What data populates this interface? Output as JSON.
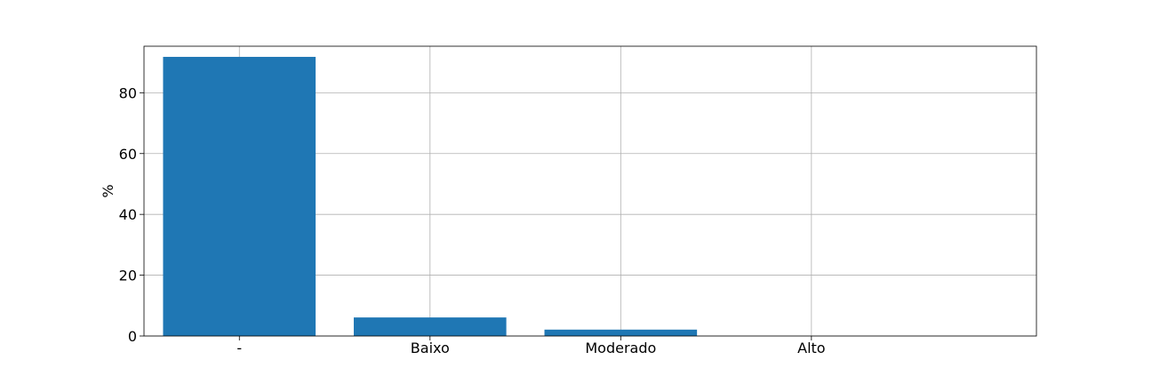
{
  "chart_data": {
    "type": "bar",
    "categories": [
      "-",
      "Baixo",
      "Moderado",
      "Alto"
    ],
    "values": [
      91.8,
      6.1,
      2.1,
      0.0
    ],
    "title": "",
    "xlabel": "",
    "ylabel": "%",
    "ylim": [
      0,
      95.3
    ],
    "yticks": [
      0,
      20,
      40,
      60,
      80
    ],
    "grid": true,
    "legend": "none",
    "bar_color": "#1f77b4"
  }
}
